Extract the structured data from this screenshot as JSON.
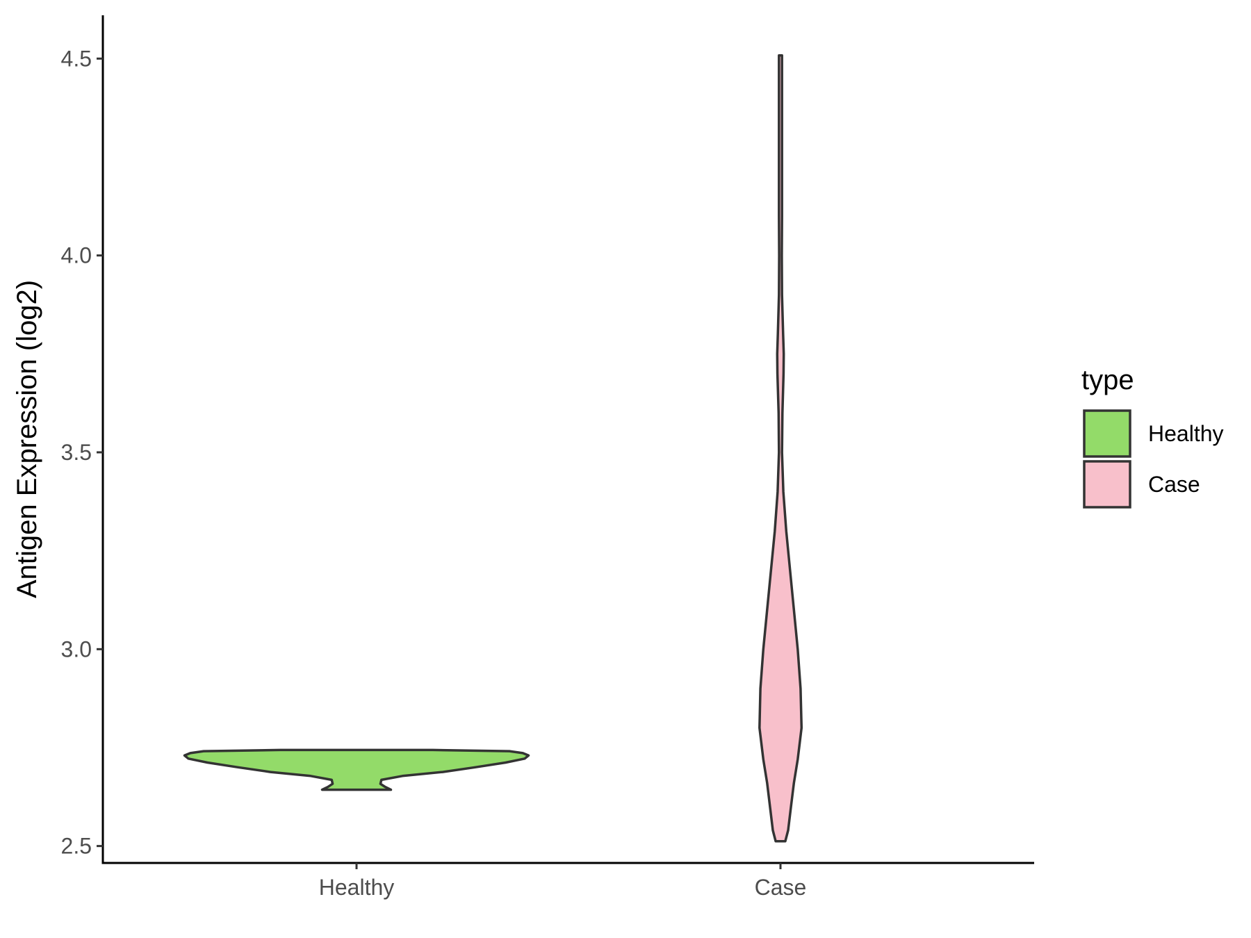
{
  "chart_data": {
    "type": "violin",
    "xlabel": "",
    "ylabel": "Antigen Expression (log2)",
    "ylim": [
      2.457,
      4.61
    ],
    "yticks": [
      "2.5",
      "3.0",
      "3.5",
      "4.0",
      "4.5"
    ],
    "categories": [
      "Healthy",
      "Case"
    ],
    "grid": false,
    "legend": {
      "title": "type",
      "position": "right",
      "entries": [
        {
          "label": "Healthy",
          "color": "#93DB69"
        },
        {
          "label": "Case",
          "color": "#F8C0CB"
        }
      ]
    },
    "series": [
      {
        "category": "Healthy",
        "color": "#93DB69",
        "density": [
          [
            2.643,
            0.18
          ],
          [
            2.65,
            0.15
          ],
          [
            2.658,
            0.125
          ],
          [
            2.668,
            0.13
          ],
          [
            2.678,
            0.24
          ],
          [
            2.688,
            0.45
          ],
          [
            2.7,
            0.62
          ],
          [
            2.712,
            0.78
          ],
          [
            2.722,
            0.88
          ],
          [
            2.73,
            0.9
          ],
          [
            2.736,
            0.87
          ],
          [
            2.741,
            0.8
          ],
          [
            2.744,
            0.4
          ],
          [
            2.744,
            0.0
          ]
        ]
      },
      {
        "category": "Case",
        "color": "#F8C0CB",
        "density": [
          [
            2.512,
            0.025
          ],
          [
            2.54,
            0.04
          ],
          [
            2.6,
            0.055
          ],
          [
            2.66,
            0.07
          ],
          [
            2.72,
            0.09
          ],
          [
            2.8,
            0.11
          ],
          [
            2.9,
            0.105
          ],
          [
            3.0,
            0.09
          ],
          [
            3.1,
            0.07
          ],
          [
            3.2,
            0.05
          ],
          [
            3.3,
            0.03
          ],
          [
            3.4,
            0.015
          ],
          [
            3.5,
            0.008
          ],
          [
            3.6,
            0.01
          ],
          [
            3.7,
            0.016
          ],
          [
            3.75,
            0.017
          ],
          [
            3.8,
            0.014
          ],
          [
            3.9,
            0.008
          ],
          [
            4.0,
            0.007
          ],
          [
            4.1,
            0.008
          ],
          [
            4.2,
            0.008
          ],
          [
            4.3,
            0.008
          ],
          [
            4.4,
            0.008
          ],
          [
            4.508,
            0.008
          ]
        ]
      }
    ]
  }
}
